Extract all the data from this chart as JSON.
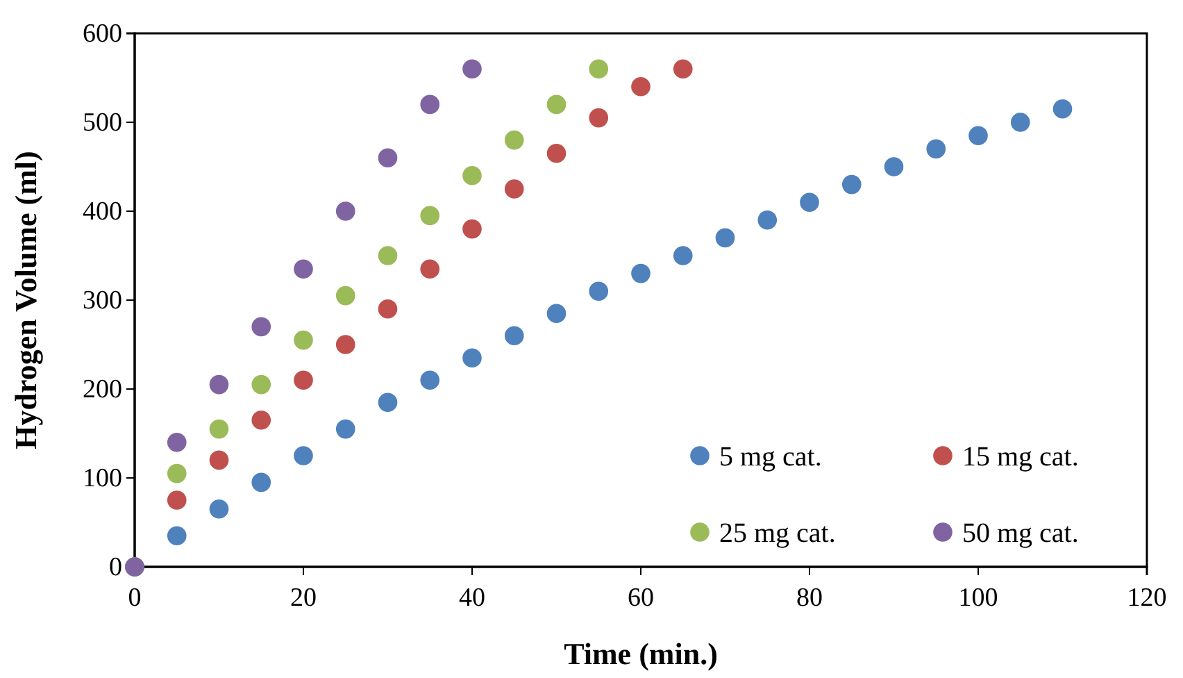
{
  "chart_data": {
    "type": "scatter",
    "xlabel": "Time (min.)",
    "ylabel": "Hydrogen Volume (ml)",
    "xlim": [
      0,
      120
    ],
    "xticks": [
      0,
      20,
      40,
      60,
      80,
      100,
      120
    ],
    "ylim": [
      0,
      600
    ],
    "yticks": [
      0,
      100,
      200,
      300,
      400,
      500,
      600
    ],
    "grid": false,
    "legend": "bottom right",
    "marker": "circle",
    "series": [
      {
        "name": "5 mg cat.",
        "color": "#4f81bd",
        "x": [
          0,
          5,
          10,
          15,
          20,
          25,
          30,
          35,
          40,
          45,
          50,
          55,
          60,
          65,
          70,
          75,
          80,
          85,
          90,
          95,
          100,
          105,
          110
        ],
        "values": [
          0,
          35,
          65,
          95,
          125,
          155,
          185,
          210,
          235,
          260,
          285,
          310,
          330,
          350,
          370,
          390,
          410,
          430,
          450,
          470,
          485,
          500,
          515
        ]
      },
      {
        "name": "15 mg cat.",
        "color": "#c0504d",
        "x": [
          0,
          5,
          10,
          15,
          20,
          25,
          30,
          35,
          40,
          45,
          50,
          55,
          60,
          65
        ],
        "values": [
          0,
          75,
          120,
          165,
          210,
          250,
          290,
          335,
          380,
          425,
          465,
          505,
          540,
          560
        ]
      },
      {
        "name": "25 mg cat.",
        "color": "#9bbb59",
        "x": [
          0,
          5,
          10,
          15,
          20,
          25,
          30,
          35,
          40,
          45,
          50,
          55
        ],
        "values": [
          0,
          105,
          155,
          205,
          255,
          305,
          350,
          395,
          440,
          480,
          520,
          560
        ]
      },
      {
        "name": "50 mg cat.",
        "color": "#8064a2",
        "x": [
          0,
          5,
          10,
          15,
          20,
          25,
          30,
          35,
          40
        ],
        "values": [
          0,
          140,
          205,
          270,
          335,
          400,
          460,
          520,
          560
        ]
      }
    ]
  }
}
